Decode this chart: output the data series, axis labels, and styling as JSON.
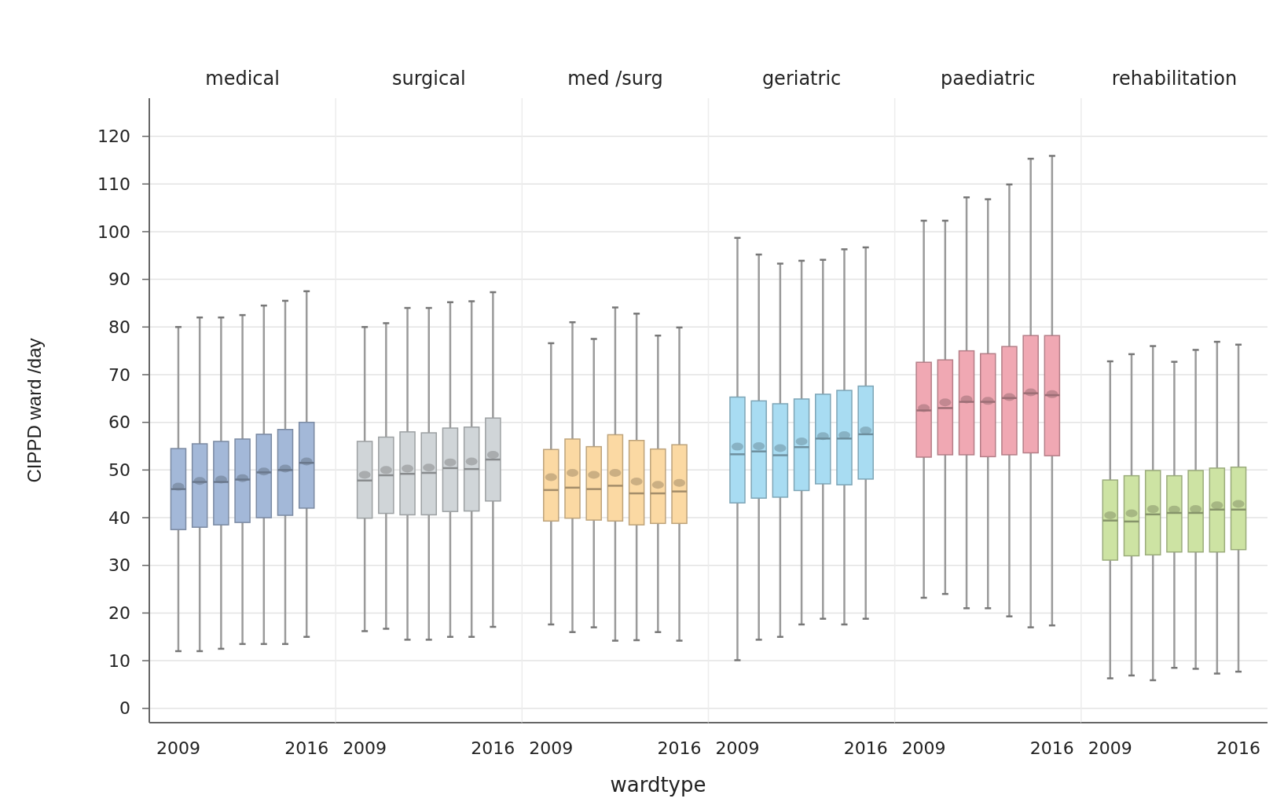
{
  "chart_data": [
    {
      "type": "box",
      "title": "medical",
      "ylabel": "CIPPD ward /day",
      "color": "#a3b8d8",
      "categories": [
        "2009",
        null,
        null,
        null,
        null,
        null,
        "2016"
      ],
      "ylim": [
        -3,
        128
      ],
      "yticks": [
        0,
        10,
        20,
        30,
        40,
        50,
        60,
        70,
        80,
        90,
        100,
        110,
        120
      ],
      "grid": "y",
      "boxes": [
        {
          "low": 12,
          "q1": 37.5,
          "median": 46,
          "q3": 54.5,
          "high": 80,
          "mean": 46.5
        },
        {
          "low": 12,
          "q1": 38,
          "median": 47.5,
          "q3": 55.5,
          "high": 82,
          "mean": 47.7
        },
        {
          "low": 12.5,
          "q1": 38.5,
          "median": 47.5,
          "q3": 56,
          "high": 82,
          "mean": 48
        },
        {
          "low": 13.5,
          "q1": 39,
          "median": 48,
          "q3": 56.5,
          "high": 82.5,
          "mean": 48.3
        },
        {
          "low": 13.5,
          "q1": 40,
          "median": 49.5,
          "q3": 57.5,
          "high": 84.5,
          "mean": 49.7
        },
        {
          "low": 13.5,
          "q1": 40.5,
          "median": 50,
          "q3": 58.5,
          "high": 85.5,
          "mean": 50.3
        },
        {
          "low": 15,
          "q1": 42,
          "median": 51.5,
          "q3": 60,
          "high": 87.5,
          "mean": 51.8
        }
      ]
    },
    {
      "type": "box",
      "title": "surgical",
      "color": "#d0d5d8",
      "categories": [
        "2009",
        null,
        null,
        null,
        null,
        null,
        "2016"
      ],
      "ylim": [
        -3,
        128
      ],
      "yticks": [
        0,
        10,
        20,
        30,
        40,
        50,
        60,
        70,
        80,
        90,
        100,
        110,
        120
      ],
      "grid": "y",
      "tick_labels": "x",
      "boxes": [
        {
          "low": 16.2,
          "q1": 39.9,
          "median": 47.8,
          "q3": 56,
          "high": 80,
          "mean": 49
        },
        {
          "low": 16.7,
          "q1": 40.9,
          "median": 48.9,
          "q3": 56.9,
          "high": 80.8,
          "mean": 50
        },
        {
          "low": 14.4,
          "q1": 40.6,
          "median": 49.2,
          "q3": 58,
          "high": 84,
          "mean": 50.3
        },
        {
          "low": 14.4,
          "q1": 40.6,
          "median": 49.4,
          "q3": 57.8,
          "high": 84,
          "mean": 50.5
        },
        {
          "low": 15,
          "q1": 41.3,
          "median": 50.4,
          "q3": 58.8,
          "high": 85.2,
          "mean": 51.6
        },
        {
          "low": 15,
          "q1": 41.4,
          "median": 50.2,
          "q3": 59,
          "high": 85.4,
          "mean": 51.8
        },
        {
          "low": 17.1,
          "q1": 43.5,
          "median": 52.2,
          "q3": 60.9,
          "high": 87.3,
          "mean": 53.2
        }
      ]
    },
    {
      "type": "box",
      "title": "med /surg",
      "xlabel": "wardtype",
      "color": "#fbd9a3",
      "categories": [
        "2009",
        null,
        null,
        null,
        null,
        null,
        "2016"
      ],
      "ylim": [
        -3,
        128
      ],
      "yticks": [
        0,
        10,
        20,
        30,
        40,
        50,
        60,
        70,
        80,
        90,
        100,
        110,
        120
      ],
      "grid": "y",
      "tick_labels": "x",
      "boxes": [
        {
          "low": 17.6,
          "q1": 39.3,
          "median": 45.8,
          "q3": 54.3,
          "high": 76.6,
          "mean": 48.5
        },
        {
          "low": 16,
          "q1": 39.9,
          "median": 46.3,
          "q3": 56.5,
          "high": 81,
          "mean": 49.4
        },
        {
          "low": 17,
          "q1": 39.5,
          "median": 46,
          "q3": 54.9,
          "high": 77.5,
          "mean": 49
        },
        {
          "low": 14.2,
          "q1": 39.3,
          "median": 46.7,
          "q3": 57.4,
          "high": 84.1,
          "mean": 49.4
        },
        {
          "low": 14.3,
          "q1": 38.5,
          "median": 45.1,
          "q3": 56.2,
          "high": 82.8,
          "mean": 47.6
        },
        {
          "low": 16,
          "q1": 38.8,
          "median": 45.1,
          "q3": 54.4,
          "high": 78.2,
          "mean": 46.9
        },
        {
          "low": 14.2,
          "q1": 38.8,
          "median": 45.5,
          "q3": 55.3,
          "high": 79.9,
          "mean": 47.3
        }
      ]
    },
    {
      "type": "box",
      "title": "geriatric",
      "color": "#a8dcf2",
      "categories": [
        "2009",
        null,
        null,
        null,
        null,
        null,
        "2016"
      ],
      "ylim": [
        -3,
        128
      ],
      "yticks": [
        0,
        10,
        20,
        30,
        40,
        50,
        60,
        70,
        80,
        90,
        100,
        110,
        120
      ],
      "grid": "y",
      "tick_labels": "x",
      "boxes": [
        {
          "low": 10.1,
          "q1": 43.1,
          "median": 53.3,
          "q3": 65.3,
          "high": 98.7,
          "mean": 54.9
        },
        {
          "low": 14.4,
          "q1": 44.1,
          "median": 53.9,
          "q3": 64.5,
          "high": 95.2,
          "mean": 55
        },
        {
          "low": 15,
          "q1": 44.3,
          "median": 53.1,
          "q3": 63.9,
          "high": 93.3,
          "mean": 54.6
        },
        {
          "low": 17.6,
          "q1": 45.7,
          "median": 54.8,
          "q3": 64.9,
          "high": 93.9,
          "mean": 56
        },
        {
          "low": 18.8,
          "q1": 47.1,
          "median": 56.6,
          "q3": 65.9,
          "high": 94.1,
          "mean": 57.1
        },
        {
          "low": 17.6,
          "q1": 46.9,
          "median": 56.6,
          "q3": 66.7,
          "high": 96.3,
          "mean": 57.3
        },
        {
          "low": 18.8,
          "q1": 48.1,
          "median": 57.5,
          "q3": 67.6,
          "high": 96.7,
          "mean": 58.3
        }
      ]
    },
    {
      "type": "box",
      "title": "paediatric",
      "color": "#f0a8b3",
      "categories": [
        "2009",
        null,
        null,
        null,
        null,
        null,
        "2016"
      ],
      "ylim": [
        -3,
        128
      ],
      "yticks": [
        0,
        10,
        20,
        30,
        40,
        50,
        60,
        70,
        80,
        90,
        100,
        110,
        120
      ],
      "grid": "y",
      "tick_labels": "x",
      "boxes": [
        {
          "low": 23.2,
          "q1": 52.7,
          "median": 62.5,
          "q3": 72.6,
          "high": 102.3,
          "mean": 63
        },
        {
          "low": 24,
          "q1": 53.2,
          "median": 63,
          "q3": 73.1,
          "high": 102.3,
          "mean": 64.2
        },
        {
          "low": 21,
          "q1": 53.2,
          "median": 64.3,
          "q3": 75,
          "high": 107.2,
          "mean": 64.8
        },
        {
          "low": 21,
          "q1": 52.8,
          "median": 64.3,
          "q3": 74.4,
          "high": 106.8,
          "mean": 64.5
        },
        {
          "low": 19.3,
          "q1": 53.2,
          "median": 65.1,
          "q3": 75.9,
          "high": 109.9,
          "mean": 65.3
        },
        {
          "low": 17,
          "q1": 53.6,
          "median": 66.1,
          "q3": 78.2,
          "high": 115.3,
          "mean": 66.3
        },
        {
          "low": 17.4,
          "q1": 53,
          "median": 65.7,
          "q3": 78.2,
          "high": 115.9,
          "mean": 65.9
        }
      ]
    },
    {
      "type": "box",
      "title": "rehabilitation",
      "color": "#cde3a3",
      "categories": [
        "2009",
        null,
        null,
        null,
        null,
        null,
        "2016"
      ],
      "ylim": [
        -3,
        128
      ],
      "yticks": [
        0,
        10,
        20,
        30,
        40,
        50,
        60,
        70,
        80,
        90,
        100,
        110,
        120
      ],
      "grid": "y",
      "tick_labels": "x",
      "boxes": [
        {
          "low": 6.3,
          "q1": 31.1,
          "median": 39.4,
          "q3": 47.9,
          "high": 72.8,
          "mean": 40.5
        },
        {
          "low": 6.9,
          "q1": 32,
          "median": 39.2,
          "q3": 48.8,
          "high": 74.3,
          "mean": 40.9
        },
        {
          "low": 5.9,
          "q1": 32.2,
          "median": 40.7,
          "q3": 49.9,
          "high": 76,
          "mean": 41.8
        },
        {
          "low": 8.5,
          "q1": 32.8,
          "median": 41,
          "q3": 48.8,
          "high": 72.7,
          "mean": 41.7
        },
        {
          "low": 8.3,
          "q1": 32.8,
          "median": 41,
          "q3": 49.9,
          "high": 75.2,
          "mean": 41.8
        },
        {
          "low": 7.3,
          "q1": 32.8,
          "median": 41.7,
          "q3": 50.4,
          "high": 76.9,
          "mean": 42.6
        },
        {
          "low": 7.7,
          "q1": 33.3,
          "median": 41.7,
          "q3": 50.6,
          "high": 76.3,
          "mean": 42.9
        }
      ]
    }
  ]
}
